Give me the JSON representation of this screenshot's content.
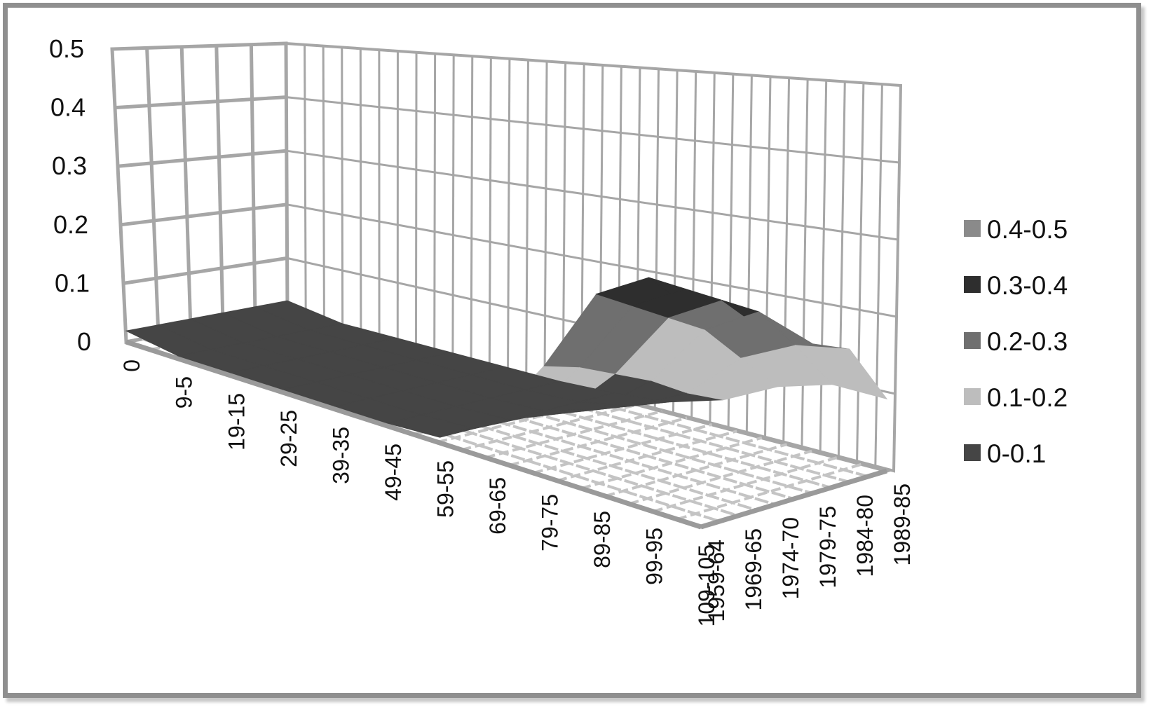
{
  "chart_data": {
    "type": "surface-3d",
    "title": "",
    "xlabel": "",
    "ylabel": "",
    "zlim": [
      0,
      0.5
    ],
    "z_ticks": [
      "0",
      "0.1",
      "0.2",
      "0.3",
      "0.4",
      "0.5"
    ],
    "age_categories": [
      "0",
      "9-5",
      "19-15",
      "29-25",
      "39-35",
      "49-45",
      "59-55",
      "69-65",
      "79-75",
      "89-85",
      "99-95",
      "109-105"
    ],
    "period_categories": [
      "1959-64",
      "1969-65",
      "1974-70",
      "1979-75",
      "1984-80",
      "1989-85"
    ],
    "rows_by_period": [
      {
        "period": "1959-64",
        "values": [
          0.02,
          0.005,
          0.005,
          0.005,
          0.005,
          0.005,
          0.01,
          0.02,
          0.05,
          0.1,
          0.13,
          0.13
        ]
      },
      {
        "period": "1969-65",
        "values": [
          0.02,
          0.005,
          0.005,
          0.005,
          0.005,
          0.005,
          0.01,
          0.03,
          0.08,
          0.17,
          0.22,
          0.24
        ]
      },
      {
        "period": "1974-70",
        "values": [
          0.02,
          0.005,
          0.005,
          0.005,
          0.005,
          0.005,
          0.01,
          0.04,
          0.12,
          0.24,
          0.3,
          0.27
        ]
      },
      {
        "period": "1979-75",
        "values": [
          0.02,
          0.005,
          0.005,
          0.005,
          0.005,
          0.005,
          0.01,
          0.05,
          0.15,
          0.28,
          0.34,
          0.3
        ]
      },
      {
        "period": "1984-80",
        "values": [
          0.02,
          0.005,
          0.005,
          0.005,
          0.005,
          0.005,
          0.01,
          0.06,
          0.18,
          0.32,
          0.38,
          0.35
        ]
      },
      {
        "period": "1989-85",
        "values": [
          0.02,
          0.005,
          0.005,
          0.005,
          0.005,
          0.005,
          0.01,
          0.07,
          0.2,
          0.36,
          0.42,
          0.38
        ]
      }
    ],
    "legend": {
      "position": "right",
      "entries": [
        {
          "label": "0.4-0.5",
          "color": "#8a8a8a"
        },
        {
          "label": "0.3-0.4",
          "color": "#2e2e2e"
        },
        {
          "label": "0.2-0.3",
          "color": "#6f6f6f"
        },
        {
          "label": "0.1-0.2",
          "color": "#bdbdbd"
        },
        {
          "label": "0-0.1",
          "color": "#454545"
        }
      ]
    },
    "grid": true
  }
}
